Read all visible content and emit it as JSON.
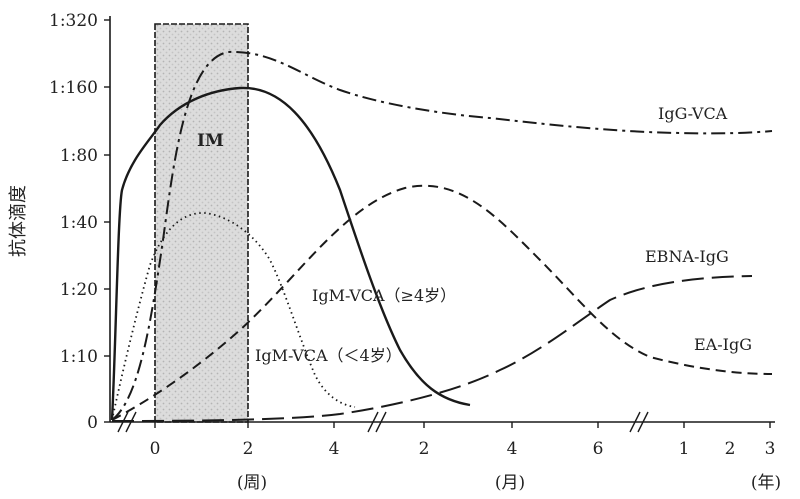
{
  "chart_data": {
    "type": "line",
    "ylabel": "抗体滴度",
    "y_ticks": [
      "0",
      "1:10",
      "1:20",
      "1:40",
      "1:80",
      "1:160",
      "1:320"
    ],
    "x_segments": [
      {
        "unit": "(周)",
        "ticks": [
          "0",
          "2",
          "4"
        ]
      },
      {
        "unit": "(月)",
        "ticks": [
          "2",
          "4",
          "6"
        ]
      },
      {
        "unit": "(年)",
        "ticks": [
          "1",
          "2",
          "3"
        ]
      }
    ],
    "x_breaks": 3,
    "shaded_region": {
      "label": "IM",
      "from": "0 周",
      "to": "2 周"
    },
    "series": [
      {
        "name": "IgG-VCA",
        "style": "dash-dot"
      },
      {
        "name": "IgM-VCA（≥4岁）",
        "style": "solid"
      },
      {
        "name": "IgM-VCA（＜4岁）",
        "style": "dotted"
      },
      {
        "name": "EA-IgG",
        "style": "dashed"
      },
      {
        "name": "EBNA-IgG",
        "style": "long-dash"
      }
    ]
  }
}
